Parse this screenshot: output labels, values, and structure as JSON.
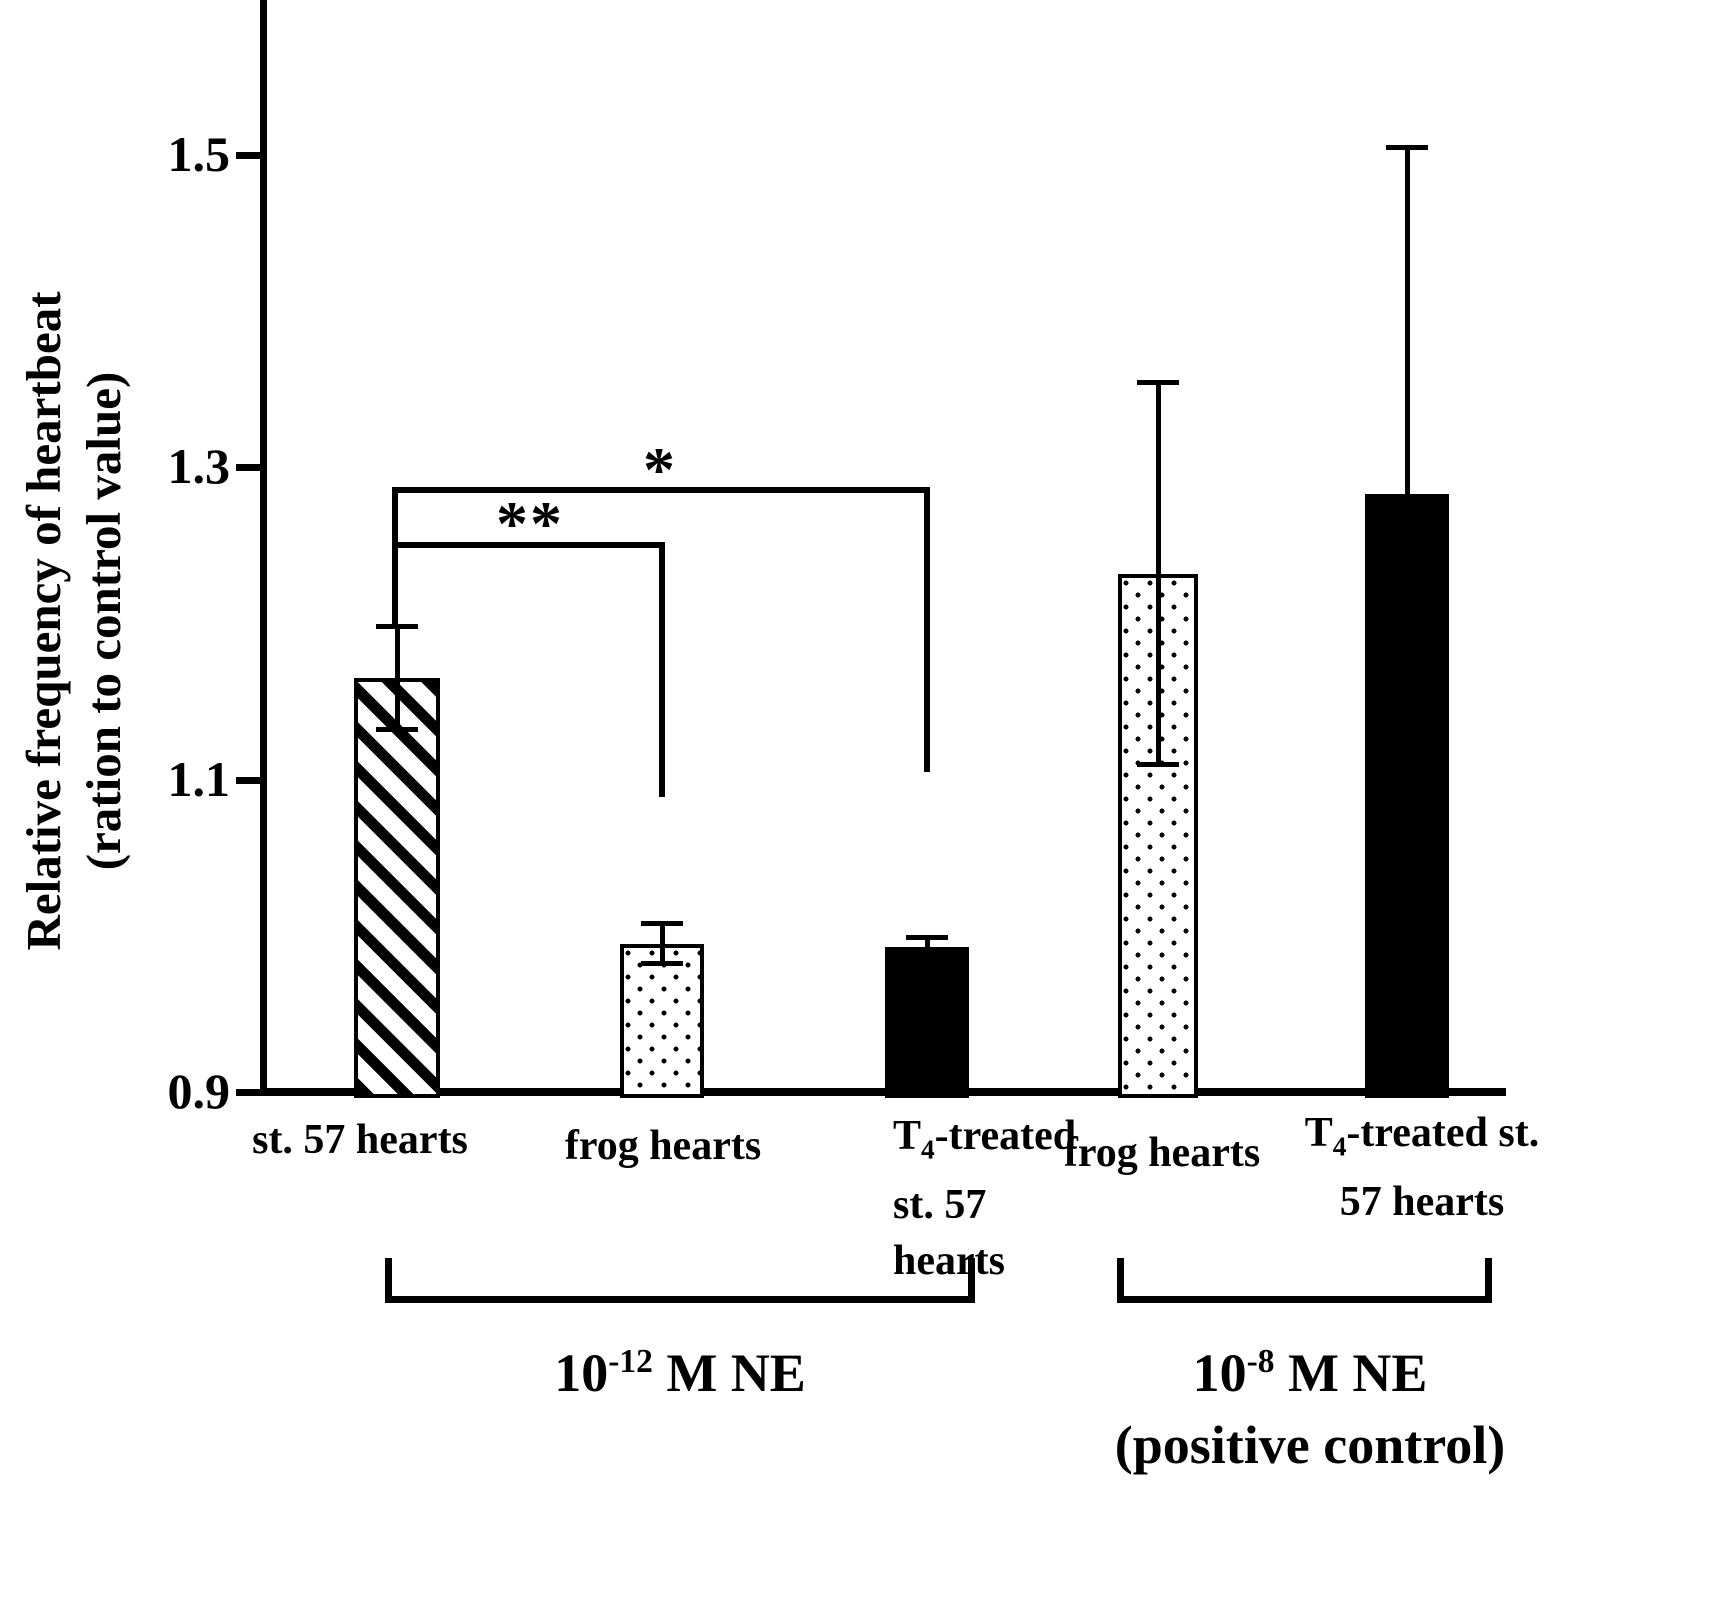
{
  "figure": {
    "y_axis": {
      "title_line1": "Relative frequency of heartbeat",
      "title_line2": "(ration to control value)",
      "tick_labels": [
        "0.9",
        "1.1",
        "1.3",
        "1.5"
      ]
    },
    "significance": {
      "double_star": "**",
      "single_star": "*"
    },
    "categories": {
      "cat1": "st. 57 hearts",
      "cat2": "frog hearts",
      "cat3_l1_base": "T",
      "cat3_l1_sub": "4",
      "cat3_l1_rest": "-treated",
      "cat3_l2": "st. 57",
      "cat3_l3": "hearts",
      "cat4": "frog hearts",
      "cat5_l1_base": "T",
      "cat5_l1_sub": "4",
      "cat5_l1_rest": "-treated st.",
      "cat5_l2": "57 hearts"
    },
    "groups": {
      "g1_base": "10",
      "g1_sup": "-12",
      "g1_rest": " M NE",
      "g2_base": "10",
      "g2_sup": "-8",
      "g2_rest": " M NE",
      "g2_line2": "(positive control)"
    }
  },
  "chart_data": {
    "type": "bar",
    "title": "",
    "xlabel": "",
    "ylabel": "Relative frequency of heartbeat (ration to control value)",
    "ylim": [
      0.9,
      1.55
    ],
    "yticks": [
      0.9,
      1.1,
      1.3,
      1.5
    ],
    "grid": false,
    "legend": false,
    "group_labels": [
      "10^-12 M NE",
      "10^-8 M NE (positive control)"
    ],
    "bars": [
      {
        "category": "st. 57 hearts",
        "group": "10^-12 M NE",
        "value": 1.165,
        "error": 0.033,
        "pattern": "diagonal-hatch"
      },
      {
        "category": "frog hearts",
        "group": "10^-12 M NE",
        "value": 0.995,
        "error": 0.013,
        "pattern": "dotted"
      },
      {
        "category": "T4-treated st. 57 hearts",
        "group": "10^-12 M NE",
        "value": 0.993,
        "error": 0.006,
        "pattern": "solid-black"
      },
      {
        "category": "frog hearts",
        "group": "10^-8 M NE (positive control)",
        "value": 1.232,
        "error": 0.122,
        "pattern": "dotted"
      },
      {
        "category": "T4-treated st. 57 hearts",
        "group": "10^-8 M NE (positive control)",
        "value": 1.283,
        "error": 0.222,
        "pattern": "solid-black"
      }
    ],
    "significance_brackets": [
      {
        "label": "**",
        "from": "st. 57 hearts (10^-12 M NE)",
        "to": "frog hearts (10^-12 M NE)"
      },
      {
        "label": "*",
        "from": "st. 57 hearts (10^-12 M NE)",
        "to": "T4-treated st. 57 hearts (10^-12 M NE)"
      }
    ]
  }
}
